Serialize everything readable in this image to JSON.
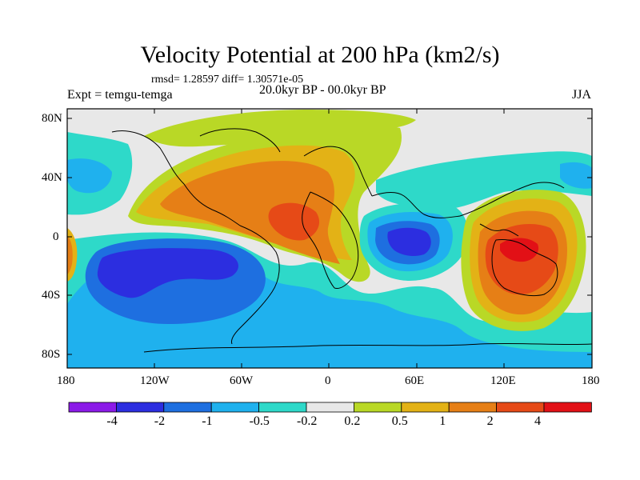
{
  "title": "Velocity Potential at 200 hPa (km2/s)",
  "stats": "rmsd= 1.28597 diff= 1.30571e-05",
  "experiment": "Expt = temgu-temga",
  "period": "20.0kyr BP - 00.0kyr BP",
  "season": "JJA",
  "lat_labels": [
    "80N",
    "40N",
    "0",
    "40S",
    "80S"
  ],
  "lon_labels": [
    "180",
    "120W",
    "60W",
    "0",
    "60E",
    "120E",
    "180"
  ],
  "colorbar": {
    "colors": [
      "#8b1ae8",
      "#2c2ee0",
      "#1e6fe0",
      "#1fb1ee",
      "#2ed9c9",
      "#e8e8e8",
      "#b9d826",
      "#e3b216",
      "#e67f16",
      "#e64a17",
      "#e21016"
    ],
    "labels": [
      "-4",
      "-2",
      "-1",
      "-0.5",
      "-0.2",
      "0.2",
      "0.5",
      "1",
      "2",
      "4"
    ]
  },
  "colors": {
    "background": "#e8e8e8",
    "coast": "#000000"
  }
}
